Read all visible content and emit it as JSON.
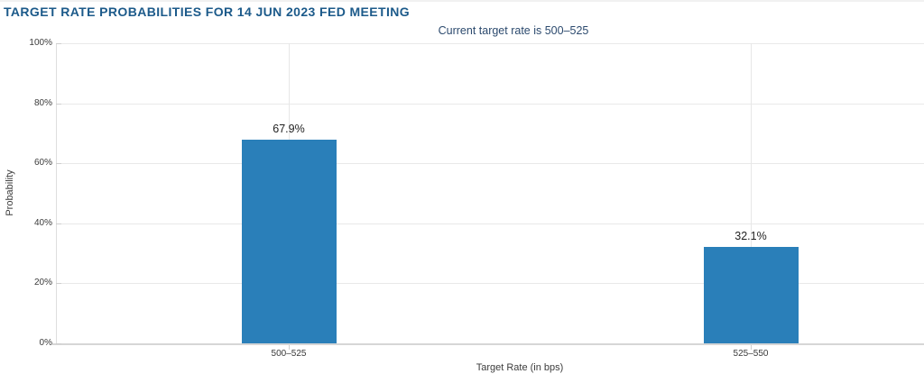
{
  "chart_data": {
    "type": "bar",
    "title": "TARGET RATE PROBABILITIES FOR 14 JUN 2023 FED MEETING",
    "subtitle": "Current target rate is 500–525",
    "categories": [
      "500–525",
      "525–550"
    ],
    "values": [
      67.9,
      32.1
    ],
    "value_labels": [
      "67.9%",
      "32.1%"
    ],
    "xlabel": "Target Rate (in bps)",
    "ylabel": "Probability",
    "ylim": [
      0,
      100
    ],
    "ytick_step": 20,
    "ytick_labels": [
      "0%",
      "20%",
      "40%",
      "60%",
      "80%",
      "100%"
    ],
    "grid": true,
    "legend": "none",
    "colors": {
      "bar": "#2a7fb9",
      "title": "#1c5a8a",
      "subtitle": "#2c4a6e",
      "axis_text": "#3c3c3c",
      "tick_text": "#3a3a3a",
      "gridline": "#e9e9e9",
      "vgridline": "#e7e7e7",
      "spine": "#dedede",
      "axis_line": "#d6d6d6",
      "tick_mark": "#cfcfcf"
    }
  }
}
